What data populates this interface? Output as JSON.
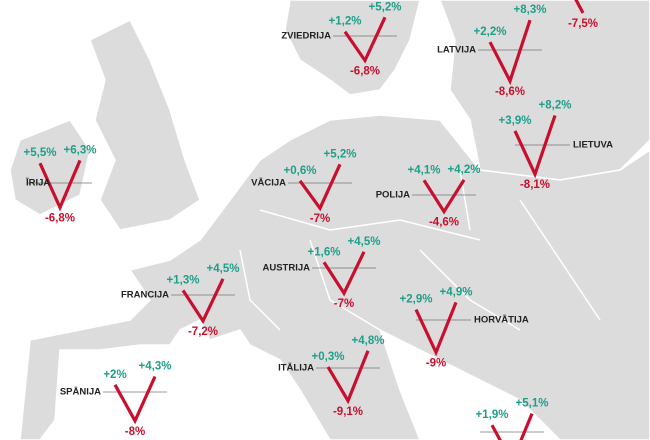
{
  "countries": [
    {
      "name": "ZVIEDRIJA",
      "before": {
        "value": 1.2,
        "label": "+1,2%"
      },
      "drop": {
        "value": -6.8,
        "label": "-6,8%"
      },
      "after": {
        "value": 5.2,
        "label": "+5,2%"
      }
    },
    {
      "name": "LATVIJA",
      "before": {
        "value": 2.2,
        "label": "+2,2%"
      },
      "drop": {
        "value": -8.6,
        "label": "-8,6%"
      },
      "after": {
        "value": 8.3,
        "label": "+8,3%"
      }
    },
    {
      "drop": {
        "value": -7.5,
        "label": "-7,5%"
      }
    },
    {
      "name": "LIETUVA",
      "before": {
        "value": 3.9,
        "label": "+3,9%"
      },
      "drop": {
        "value": -8.1,
        "label": "-8,1%"
      },
      "after": {
        "value": 8.2,
        "label": "+8,2%"
      }
    },
    {
      "name": "ĪRIJA",
      "before": {
        "value": 5.5,
        "label": "+5,5%"
      },
      "drop": {
        "value": -6.8,
        "label": "-6,8%"
      },
      "after": {
        "value": 6.3,
        "label": "+6,3%"
      }
    },
    {
      "name": "VĀCIJA",
      "before": {
        "value": 0.6,
        "label": "+0,6%"
      },
      "drop": {
        "value": -7,
        "label": "-7%"
      },
      "after": {
        "value": 5.2,
        "label": "+5,2%"
      }
    },
    {
      "name": "POLIJA",
      "before": {
        "value": 4.1,
        "label": "+4,1%"
      },
      "drop": {
        "value": -4.6,
        "label": "-4,6%"
      },
      "after": {
        "value": 4.2,
        "label": "+4,2%"
      }
    },
    {
      "name": "AUSTRIJA",
      "before": {
        "value": 1.6,
        "label": "+1,6%"
      },
      "drop": {
        "value": -7,
        "label": "-7%"
      },
      "after": {
        "value": 4.5,
        "label": "+4,5%"
      }
    },
    {
      "name": "FRANCIJA",
      "before": {
        "value": 1.3,
        "label": "+1,3%"
      },
      "drop": {
        "value": -7.2,
        "label": "-7,2%"
      },
      "after": {
        "value": 4.5,
        "label": "+4,5%"
      }
    },
    {
      "name": "HORVĀTIJA",
      "before": {
        "value": 2.9,
        "label": "+2,9%"
      },
      "drop": {
        "value": -9,
        "label": "-9%"
      },
      "after": {
        "value": 4.9,
        "label": "+4,9%"
      }
    },
    {
      "name": "ITĀLIJA",
      "before": {
        "value": 0.3,
        "label": "+0,3%"
      },
      "drop": {
        "value": -9.1,
        "label": "-9,1%"
      },
      "after": {
        "value": 4.8,
        "label": "+4,8%"
      }
    },
    {
      "name": "SPĀNIJA",
      "before": {
        "value": 2,
        "label": "+2%"
      },
      "drop": {
        "value": -8,
        "label": "-8%"
      },
      "after": {
        "value": 4.3,
        "label": "+4,3%"
      }
    },
    {
      "before": {
        "value": 1.9,
        "label": "+1,9%"
      },
      "after": {
        "value": 5.1,
        "label": "+5,1%"
      }
    }
  ]
}
